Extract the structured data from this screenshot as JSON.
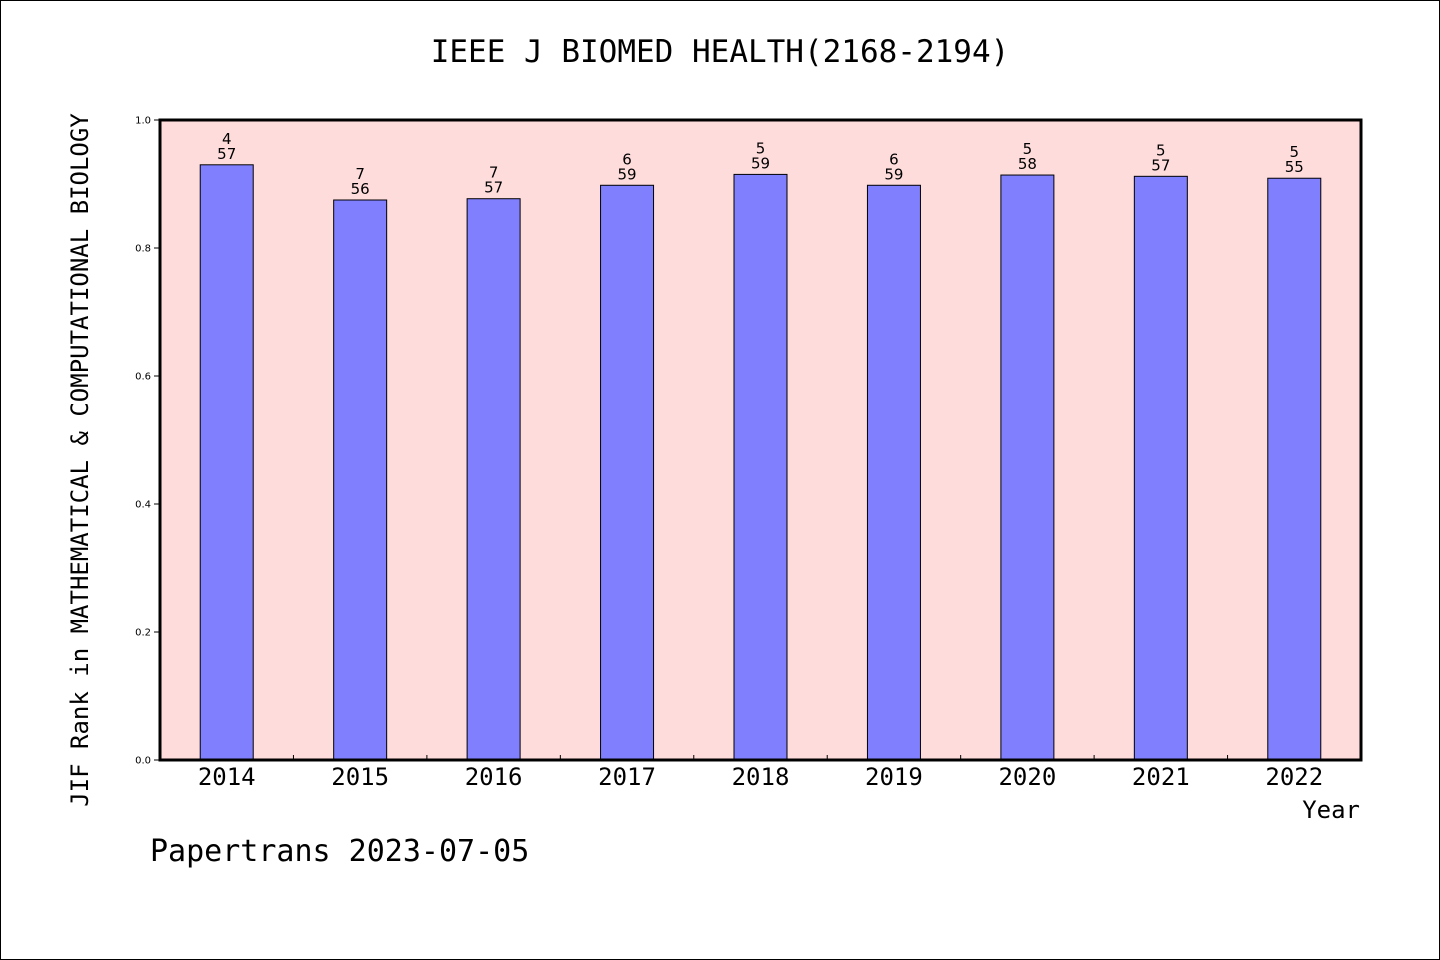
{
  "chart_data": {
    "type": "bar",
    "title": "IEEE J BIOMED HEALTH(2168-2194)",
    "xlabel": "Year",
    "ylabel": "JIF Rank in MATHEMATICAL & COMPUTATIONAL BIOLOGY",
    "ylim": [
      0,
      1.0
    ],
    "yticks": [
      "0.0",
      "0.2",
      "0.4",
      "0.6",
      "0.8",
      "1.0"
    ],
    "categories": [
      "2014",
      "2015",
      "2016",
      "2017",
      "2018",
      "2019",
      "2020",
      "2021",
      "2022"
    ],
    "values": [
      0.93,
      0.875,
      0.877,
      0.898,
      0.915,
      0.898,
      0.914,
      0.912,
      0.909
    ],
    "bar_labels": [
      {
        "rank": "4",
        "total": "57"
      },
      {
        "rank": "7",
        "total": "56"
      },
      {
        "rank": "7",
        "total": "57"
      },
      {
        "rank": "6",
        "total": "59"
      },
      {
        "rank": "5",
        "total": "59"
      },
      {
        "rank": "6",
        "total": "59"
      },
      {
        "rank": "5",
        "total": "58"
      },
      {
        "rank": "5",
        "total": "57"
      },
      {
        "rank": "5",
        "total": "55"
      }
    ],
    "grid": false,
    "colors": {
      "bar": "#8080ff",
      "plot_background": "#ffdcdc",
      "axis": "#000000"
    }
  },
  "footer": "Papertrans 2023-07-05"
}
